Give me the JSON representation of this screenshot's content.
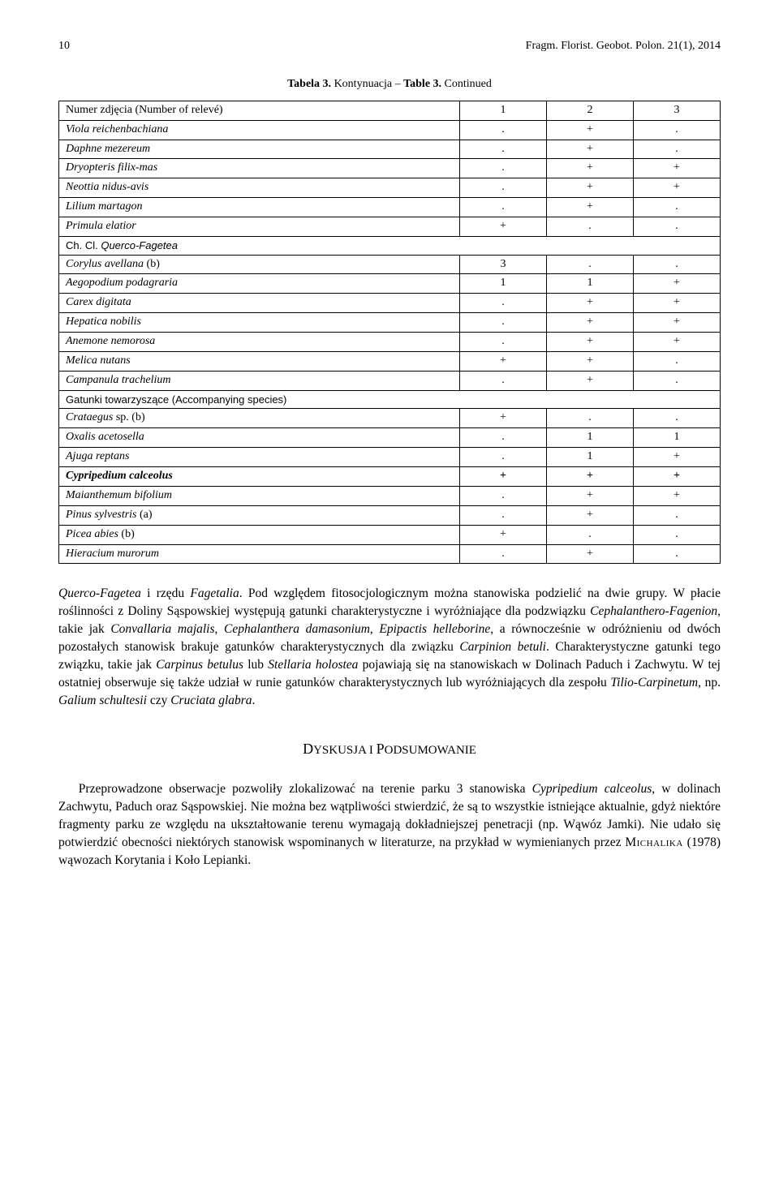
{
  "header": {
    "page_number": "10",
    "running_title": "Fragm. Florist. Geobot. Polon. 21(1), 2014"
  },
  "table": {
    "caption_bold": "Tabela 3.",
    "caption_rest": " Kontynuacja – ",
    "caption_bold2": "Table 3.",
    "caption_rest2": " Continued",
    "header_row": {
      "label": "Numer zdjęcia (Number of relevé)",
      "c1": "1",
      "c2": "2",
      "c3": "3"
    },
    "rows": [
      {
        "name": "Viola reichenbachiana",
        "c1": ".",
        "c2": "+",
        "c3": ".",
        "italic": true
      },
      {
        "name": "Daphne mezereum",
        "c1": ".",
        "c2": "+",
        "c3": ".",
        "italic": true
      },
      {
        "name": "Dryopteris filix-mas",
        "c1": ".",
        "c2": "+",
        "c3": "+",
        "italic": true
      },
      {
        "name": "Neottia nidus-avis",
        "c1": ".",
        "c2": "+",
        "c3": "+",
        "italic": true
      },
      {
        "name": "Lilium martagon",
        "c1": ".",
        "c2": "+",
        "c3": ".",
        "italic": true
      },
      {
        "name": "Primula elatior",
        "c1": "+",
        "c2": ".",
        "c3": ".",
        "italic": true
      },
      {
        "name_prefix": "Ch. Cl. ",
        "name": "Querco-Fagetea",
        "section": true
      },
      {
        "name": "Corylus avellana",
        "suffix": " (b)",
        "c1": "3",
        "c2": ".",
        "c3": ".",
        "italic": true
      },
      {
        "name": "Aegopodium podagraria",
        "c1": "1",
        "c2": "1",
        "c3": "+",
        "italic": true
      },
      {
        "name": "Carex digitata",
        "c1": ".",
        "c2": "+",
        "c3": "+",
        "italic": true
      },
      {
        "name": "Hepatica nobilis",
        "c1": ".",
        "c2": "+",
        "c3": "+",
        "italic": true
      },
      {
        "name": "Anemone nemorosa",
        "c1": ".",
        "c2": "+",
        "c3": "+",
        "italic": true
      },
      {
        "name": "Melica nutans",
        "c1": "+",
        "c2": "+",
        "c3": ".",
        "italic": true
      },
      {
        "name": "Campanula trachelium",
        "c1": ".",
        "c2": "+",
        "c3": ".",
        "italic": true
      },
      {
        "name": "Gatunki towarzyszące (Accompanying species)",
        "section": true
      },
      {
        "name": "Crataegus",
        "suffix": " sp. (b)",
        "c1": "+",
        "c2": ".",
        "c3": ".",
        "italic": true
      },
      {
        "name": "Oxalis acetosella",
        "c1": ".",
        "c2": "1",
        "c3": "1",
        "italic": true
      },
      {
        "name": "Ajuga reptans",
        "c1": ".",
        "c2": "1",
        "c3": "+",
        "italic": true
      },
      {
        "name": "Cypripedium calceolus",
        "c1": "+",
        "c2": "+",
        "c3": "+",
        "italic": true,
        "bold": true
      },
      {
        "name": "Maianthemum bifolium",
        "c1": ".",
        "c2": "+",
        "c3": "+",
        "italic": true
      },
      {
        "name": "Pinus sylvestris",
        "suffix": " (a)",
        "c1": ".",
        "c2": "+",
        "c3": ".",
        "italic": true
      },
      {
        "name": "Picea abies",
        "suffix": " (b)",
        "c1": "+",
        "c2": ".",
        "c3": ".",
        "italic": true
      },
      {
        "name": "Hieracium murorum",
        "c1": ".",
        "c2": "+",
        "c3": ".",
        "italic": true
      }
    ]
  },
  "paragraph1_parts": [
    {
      "t": "Querco-Fagetea",
      "i": true
    },
    {
      "t": " i rzędu "
    },
    {
      "t": "Fagetalia",
      "i": true
    },
    {
      "t": ". Pod względem fitosocjologicznym można stanowiska podzielić na dwie grupy. W płacie roślinności z Doliny Sąspowskiej występują gatunki charakterystyczne i wyróżniające dla podzwiązku "
    },
    {
      "t": "Cephalanthero-Fagenion",
      "i": true
    },
    {
      "t": ", takie jak "
    },
    {
      "t": "Convallaria majalis",
      "i": true
    },
    {
      "t": ", "
    },
    {
      "t": "Cephalanthera damasonium",
      "i": true
    },
    {
      "t": ", "
    },
    {
      "t": "Epipactis helleborine",
      "i": true
    },
    {
      "t": ", a równocześnie w odróżnieniu od dwóch pozostałych stanowisk brakuje gatunków charakterystycznych dla związku "
    },
    {
      "t": "Carpinion betuli",
      "i": true
    },
    {
      "t": ". Charakterystyczne gatunki tego związku, takie jak "
    },
    {
      "t": "Carpinus betulus",
      "i": true
    },
    {
      "t": " lub "
    },
    {
      "t": "Stellaria holostea",
      "i": true
    },
    {
      "t": " pojawiają się na stanowiskach w Dolinach Paduch i Zachwytu. W tej ostatniej obserwuje się także udział w runie gatunków charakterystycznych lub wyróżniających dla zespołu "
    },
    {
      "t": "Tilio-Carpinetum",
      "i": true
    },
    {
      "t": ", np. "
    },
    {
      "t": "Galium schultesii",
      "i": true
    },
    {
      "t": " czy "
    },
    {
      "t": "Cruciata glabra",
      "i": true
    },
    {
      "t": "."
    }
  ],
  "section_heading": {
    "word1_first": "D",
    "word1_rest": "YSKUSJA",
    "joiner": " I ",
    "word2_first": "P",
    "word2_rest": "ODSUMOWANIE"
  },
  "paragraph2_parts": [
    {
      "t": "Przeprowadzone obserwacje pozwoliły zlokalizować na terenie parku 3 stanowiska "
    },
    {
      "t": "Cypripedium calceolus",
      "i": true
    },
    {
      "t": ", w dolinach Zachwytu, Paduch oraz Sąspowskiej. Nie można bez wątpliwości stwierdzić, że są to wszystkie istniejące aktualnie, gdyż niektóre fragmenty parku ze względu na ukształtowanie terenu wymagają dokładniejszej penetracji (np. Wąwóz Jamki). Nie udało się potwierdzić obecności niektórych stanowisk wspominanych w literaturze, na przykład w wymienianych przez "
    },
    {
      "t": "Michalika",
      "sc": true
    },
    {
      "t": " (1978) wąwozach Korytania i Koło Lepianki."
    }
  ]
}
